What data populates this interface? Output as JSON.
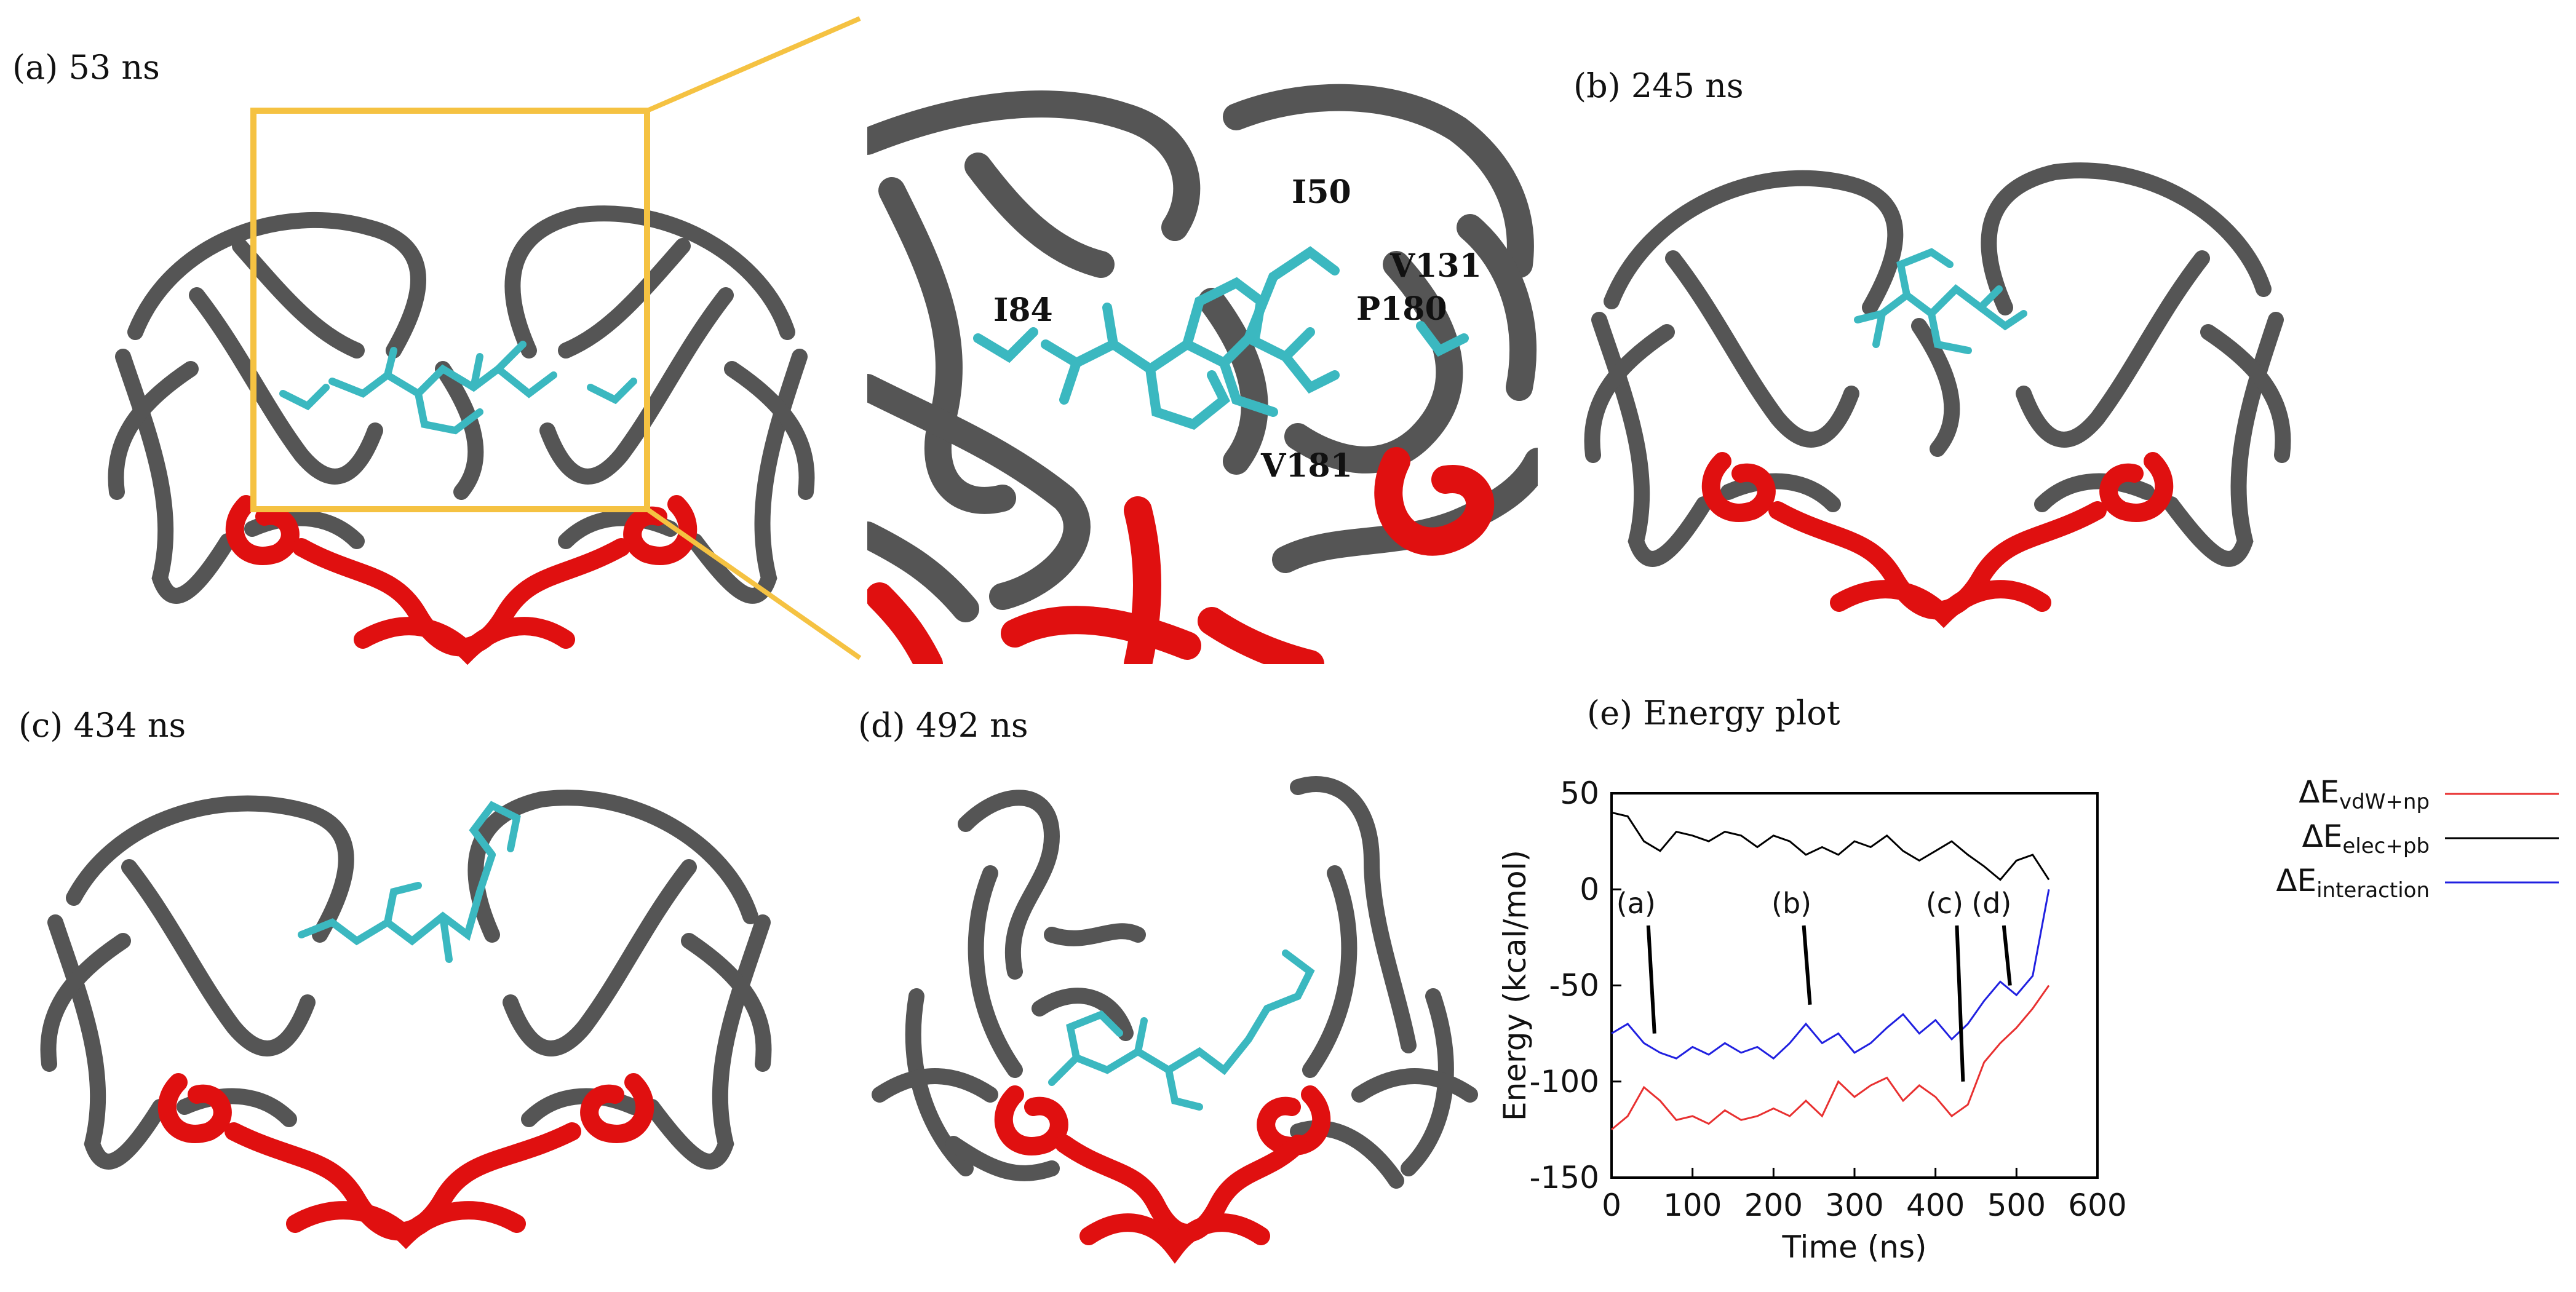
{
  "panels": {
    "a": "(a) 53 ns",
    "b": "(b) 245 ns",
    "c": "(c) 434 ns",
    "d": "(d) 492 ns",
    "e": "(e) Energy plot"
  },
  "zoom_residues": [
    "I50",
    "V131",
    "I84",
    "P180",
    "V181"
  ],
  "colors": {
    "ribbon": "#555555",
    "flap": "#e01010",
    "ligand": "#3bb8c0",
    "zoom_box": "#f5c242"
  },
  "chart_data": {
    "type": "line",
    "xlabel": "Time (ns)",
    "ylabel": "Energy (kcal/mol)",
    "xlim": [
      0,
      600
    ],
    "ylim": [
      -150,
      50
    ],
    "xticks": [
      0,
      100,
      200,
      300,
      400,
      500,
      600
    ],
    "yticks": [
      50,
      0,
      -50,
      -100,
      -150
    ],
    "grid": false,
    "legend_position": "outside-right",
    "legend": [
      {
        "main": "ΔE",
        "sub": "vdW+np",
        "color": "#e83030"
      },
      {
        "main": "ΔE",
        "sub": "elec+pb",
        "color": "#000000"
      },
      {
        "main": "ΔE",
        "sub": "interaction",
        "color": "#2020e0"
      }
    ],
    "series": [
      {
        "color": "#e83030",
        "x": [
          0,
          20,
          40,
          60,
          80,
          100,
          120,
          140,
          160,
          180,
          200,
          220,
          240,
          260,
          280,
          300,
          320,
          340,
          360,
          380,
          400,
          420,
          440,
          460,
          480,
          500,
          520,
          540
        ],
        "values": [
          -125,
          -118,
          -103,
          -110,
          -120,
          -118,
          -122,
          -115,
          -120,
          -118,
          -114,
          -118,
          -110,
          -118,
          -100,
          -108,
          -102,
          -98,
          -110,
          -102,
          -108,
          -118,
          -112,
          -90,
          -80,
          -72,
          -62,
          -50
        ]
      },
      {
        "color": "#000000",
        "x": [
          0,
          20,
          40,
          60,
          80,
          100,
          120,
          140,
          160,
          180,
          200,
          220,
          240,
          260,
          280,
          300,
          320,
          340,
          360,
          380,
          400,
          420,
          440,
          460,
          480,
          500,
          520,
          540
        ],
        "values": [
          40,
          38,
          25,
          20,
          30,
          28,
          25,
          30,
          28,
          22,
          28,
          25,
          18,
          22,
          18,
          25,
          22,
          28,
          20,
          15,
          20,
          25,
          18,
          12,
          5,
          15,
          18,
          5
        ]
      },
      {
        "color": "#2020e0",
        "x": [
          0,
          20,
          40,
          60,
          80,
          100,
          120,
          140,
          160,
          180,
          200,
          220,
          240,
          260,
          280,
          300,
          320,
          340,
          360,
          380,
          400,
          420,
          440,
          460,
          480,
          500,
          520,
          540
        ],
        "values": [
          -75,
          -70,
          -80,
          -85,
          -88,
          -82,
          -86,
          -80,
          -85,
          -82,
          -88,
          -80,
          -70,
          -80,
          -75,
          -85,
          -80,
          -72,
          -65,
          -75,
          -68,
          -78,
          -70,
          -58,
          -48,
          -55,
          -45,
          0
        ]
      }
    ],
    "annotations": [
      {
        "text": "(a)",
        "x": 53,
        "y": -75
      },
      {
        "text": "(b)",
        "x": 245,
        "y": -60
      },
      {
        "text": "(c)",
        "x": 434,
        "y": -100
      },
      {
        "text": "(d)",
        "x": 492,
        "y": -50
      }
    ]
  }
}
